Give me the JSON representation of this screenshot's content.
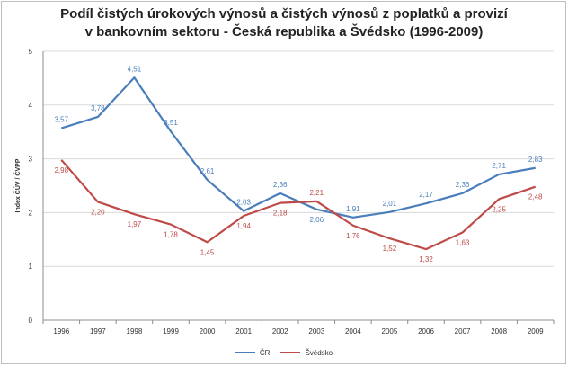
{
  "chart_data": {
    "type": "line",
    "title_line1": "Podíl čistých úrokových výnosů a čistých výnosů z poplatků a provizí",
    "title_line2": "v bankovním sektoru - Česká republika a Švédsko (1996-2009)",
    "xlabel": "",
    "ylabel": "Index ČÚV / ČVPP",
    "ylim": [
      0,
      5
    ],
    "yticks": [
      "0",
      "1",
      "2",
      "3",
      "4",
      "5"
    ],
    "categories": [
      "1996",
      "1997",
      "1998",
      "1999",
      "2000",
      "2001",
      "2002",
      "2003",
      "2004",
      "2005",
      "2006",
      "2007",
      "2008",
      "2009"
    ],
    "series": [
      {
        "name": "ČR",
        "color": "#4a7ebb",
        "values": [
          3.57,
          3.78,
          4.51,
          3.51,
          2.61,
          2.03,
          2.36,
          2.06,
          1.91,
          2.01,
          2.17,
          2.36,
          2.71,
          2.83
        ],
        "labels": [
          "3,57",
          "3,78",
          "4,51",
          "3,51",
          "2,61",
          "2,03",
          "2,36",
          "2,06",
          "1,91",
          "2,01",
          "2,17",
          "2,36",
          "2,71",
          "2,83"
        ]
      },
      {
        "name": "Švédsko",
        "color": "#be4b48",
        "values": [
          2.98,
          2.2,
          1.97,
          1.78,
          1.45,
          1.94,
          2.18,
          2.21,
          1.76,
          1.52,
          1.32,
          1.63,
          2.25,
          2.48
        ],
        "labels": [
          "2,98",
          "2,20",
          "1,97",
          "1,78",
          "1,45",
          "1,94",
          "2,18",
          "2,21",
          "1,76",
          "1,52",
          "1,32",
          "1,63",
          "2,25",
          "2,48"
        ]
      }
    ],
    "legend_position": "bottom",
    "grid": true
  }
}
